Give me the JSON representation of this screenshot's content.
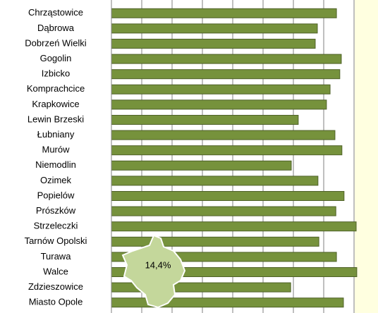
{
  "chart_data": {
    "type": "bar",
    "orientation": "horizontal",
    "categories": [
      "Chrząstowice",
      "Dąbrowa",
      "Dobrzeń Wielki",
      "Gogolin",
      "Izbicko",
      "Komprachcice",
      "Krapkowice",
      "Lewin Brzeski",
      "Łubniany",
      "Murów",
      "Niemodlin",
      "Ozimek",
      "Popielów",
      "Prószków",
      "Strzeleczki",
      "Tarnów Opolski",
      "Turawa",
      "Walce",
      "Zdzieszowice",
      "Miasto Opole"
    ],
    "values": [
      7.42,
      6.79,
      6.72,
      7.58,
      7.53,
      7.21,
      7.09,
      6.16,
      7.37,
      7.6,
      5.93,
      6.81,
      7.67,
      7.4,
      8.07,
      6.84,
      7.42,
      8.09,
      5.91,
      7.65
    ],
    "color": "#76923c",
    "xlim": [
      0,
      8.79
    ],
    "xticks": [
      0,
      1,
      2,
      3,
      4,
      5,
      6,
      7,
      8
    ],
    "grid": true,
    "annotation": "14,4%"
  }
}
